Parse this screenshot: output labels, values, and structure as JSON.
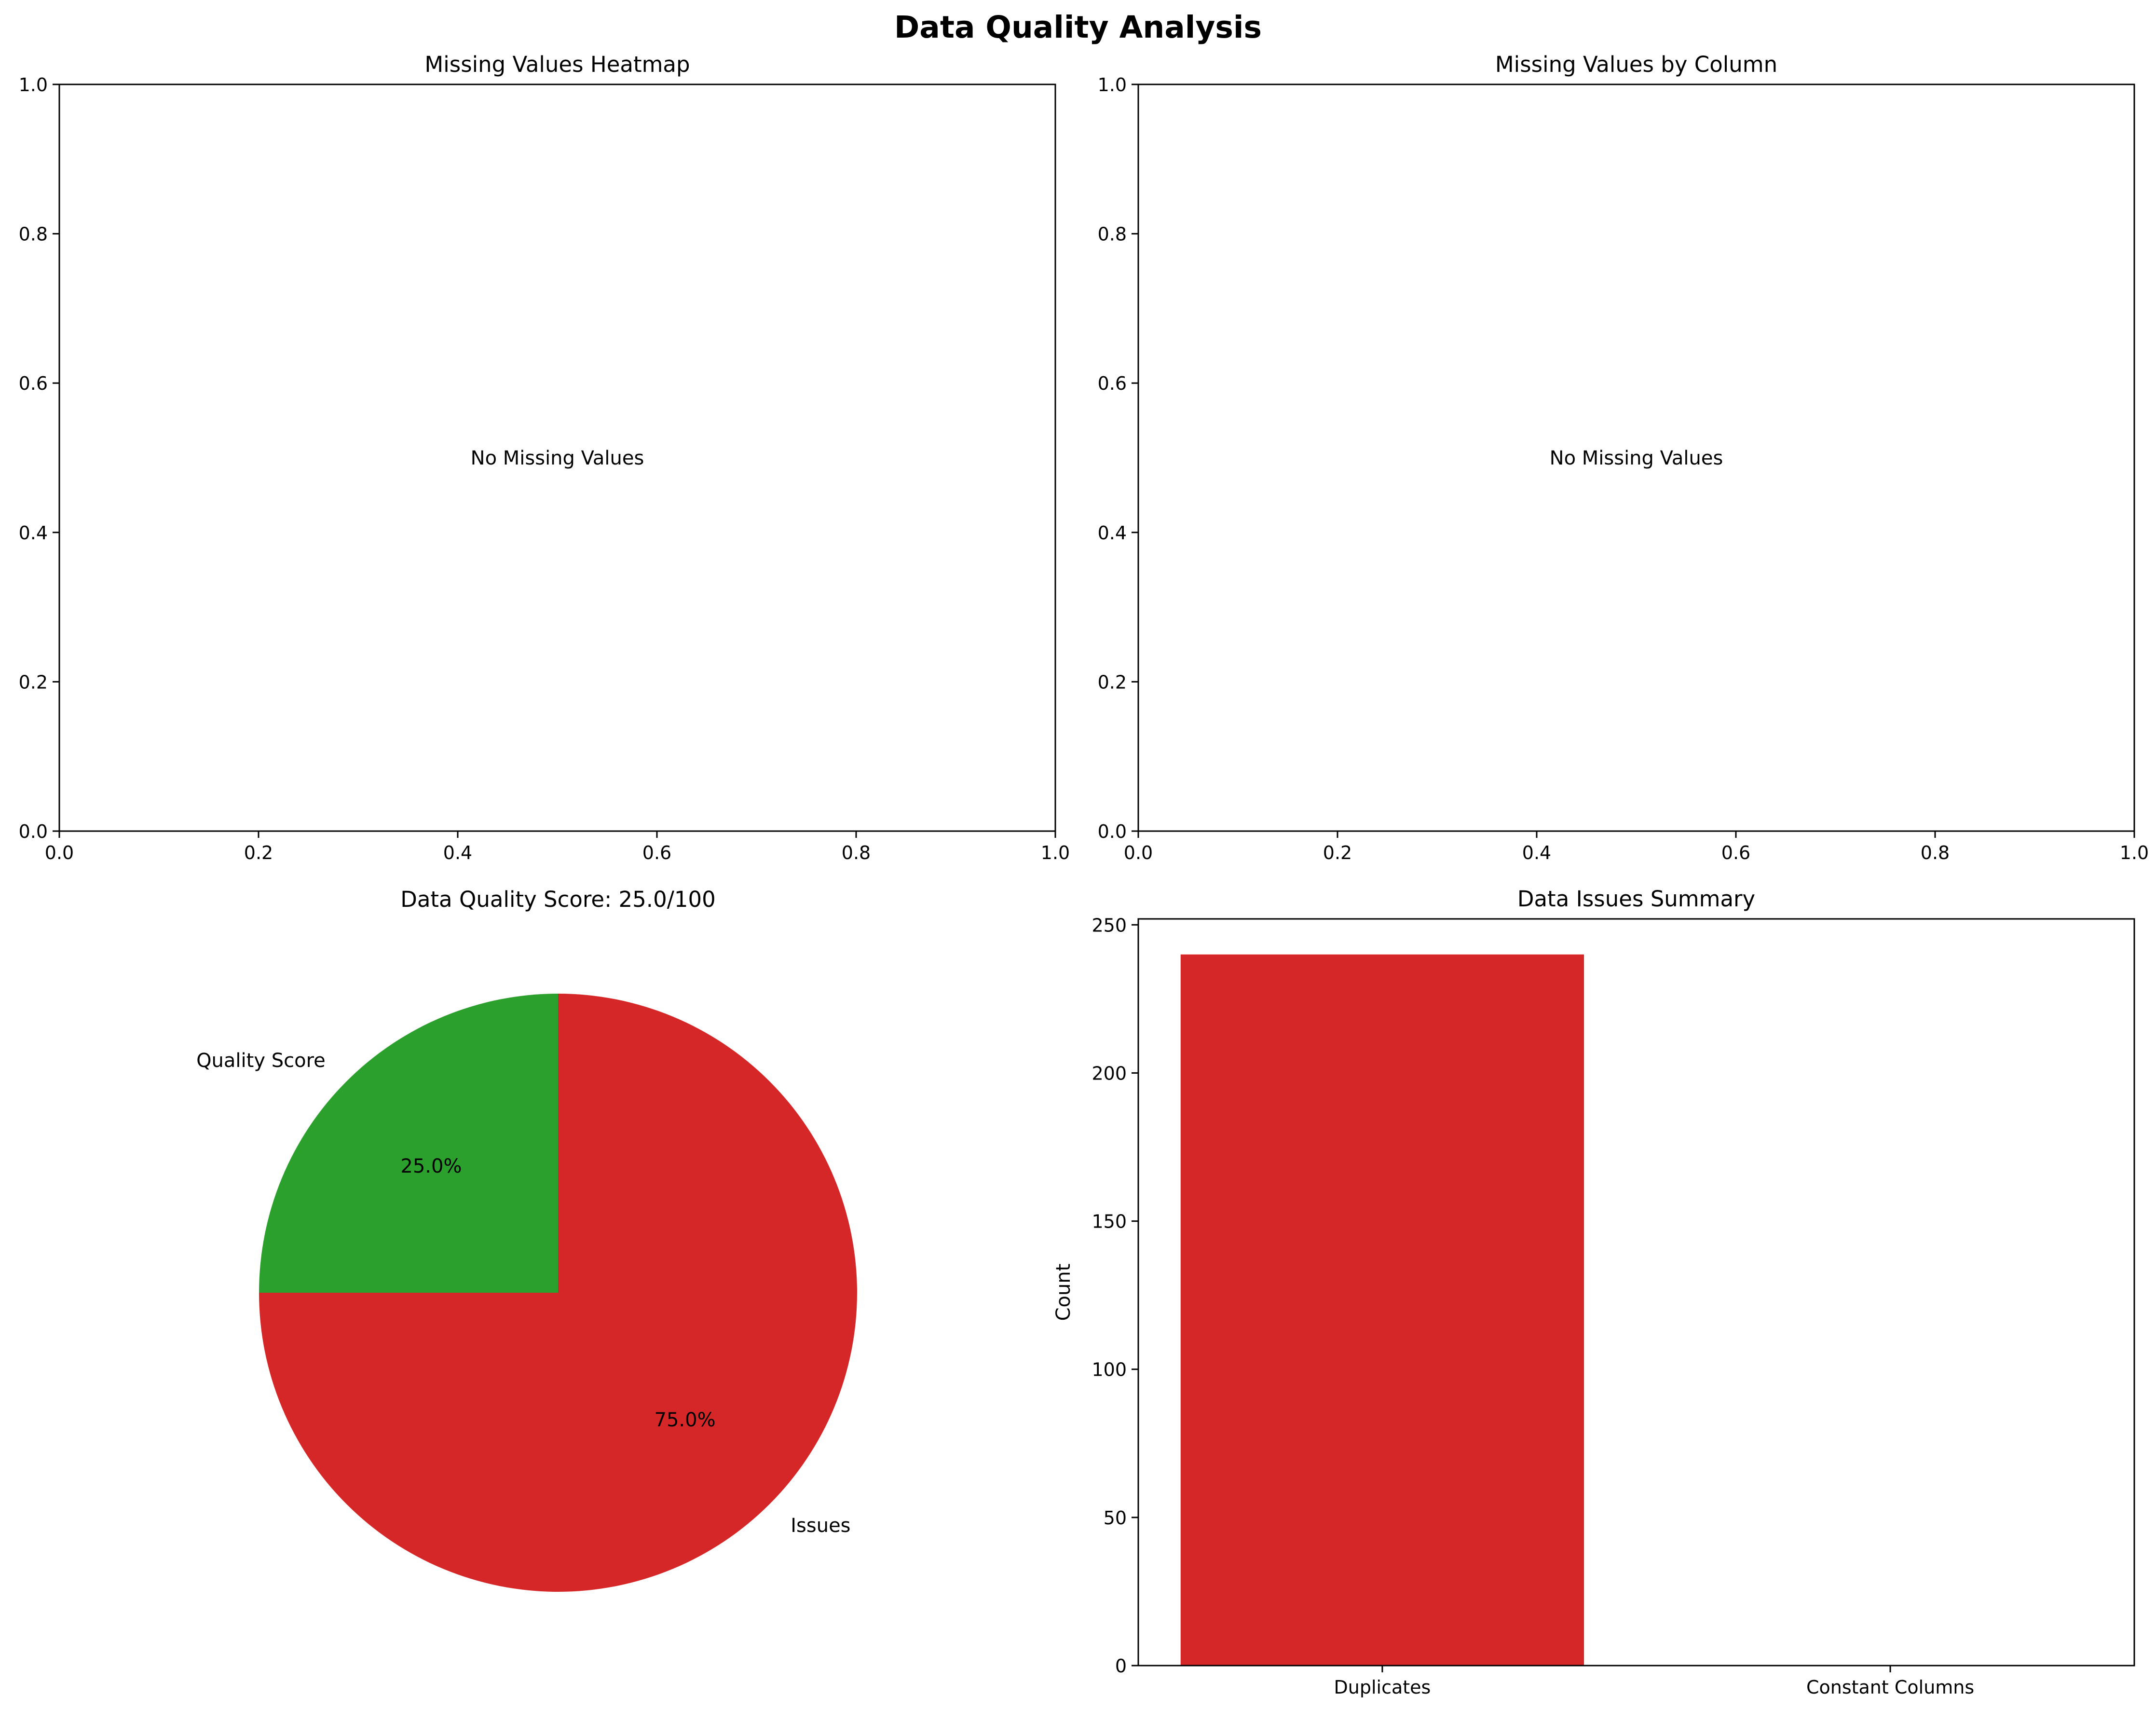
{
  "figure": {
    "title": "Data Quality Analysis"
  },
  "chart_data": [
    {
      "type": "heatmap",
      "title": "Missing Values Heatmap",
      "annotation": "No Missing Values",
      "xlim": [
        0,
        1
      ],
      "ylim": [
        0,
        1
      ],
      "xticks": [
        "0.0",
        "0.2",
        "0.4",
        "0.6",
        "0.8",
        "1.0"
      ],
      "yticks": [
        "0.0",
        "0.2",
        "0.4",
        "0.6",
        "0.8",
        "1.0"
      ]
    },
    {
      "type": "bar",
      "title": "Missing Values by Column",
      "annotation": "No Missing Values",
      "xlim": [
        0,
        1
      ],
      "ylim": [
        0,
        1
      ],
      "xticks": [
        "0.0",
        "0.2",
        "0.4",
        "0.6",
        "0.8",
        "1.0"
      ],
      "yticks": [
        "0.0",
        "0.2",
        "0.4",
        "0.6",
        "0.8",
        "1.0"
      ]
    },
    {
      "type": "pie",
      "title": "Data Quality Score: 25.0/100",
      "slices": [
        {
          "label": "Quality Score",
          "value": 25.0,
          "pct_label": "25.0%",
          "color": "#2ca02c"
        },
        {
          "label": "Issues",
          "value": 75.0,
          "pct_label": "75.0%",
          "color": "#d62728"
        }
      ]
    },
    {
      "type": "bar",
      "title": "Data Issues Summary",
      "ylabel": "Count",
      "categories": [
        "Duplicates",
        "Constant Columns"
      ],
      "values": [
        240,
        0
      ],
      "colors": [
        "#d62728",
        "#ff7f0e"
      ],
      "ylim": [
        0,
        252
      ],
      "yticks": [
        0,
        50,
        100,
        150,
        200,
        250
      ]
    }
  ]
}
